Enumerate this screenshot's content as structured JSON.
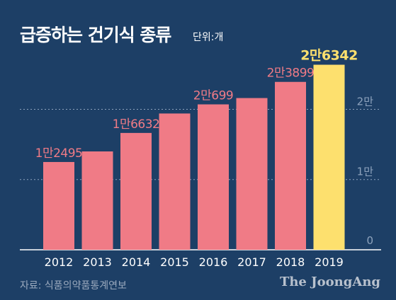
{
  "colors": {
    "background": "#1d3f66",
    "bar": "#f07b86",
    "highlight_bar": "#fde06e",
    "label": "#f07b86",
    "highlight_label": "#fde06e",
    "grid": "#8ea3bd",
    "axis_text": "#ffffff",
    "ytick_text": "#8ea3bd"
  },
  "source": "자료: 식품의약품통계연보",
  "logo": "The JoongAng",
  "chart_data": {
    "type": "bar",
    "title": "급증하는 건기식 종류",
    "unit": "단위:개",
    "categories": [
      "2012",
      "2013",
      "2014",
      "2015",
      "2016",
      "2017",
      "2018",
      "2019"
    ],
    "values": [
      12495,
      14000,
      16632,
      19400,
      20699,
      21600,
      23899,
      26342
    ],
    "data_labels": [
      "1만2495",
      "",
      "1만6632",
      "",
      "2만699",
      "",
      "2만3899",
      "2만6342"
    ],
    "highlight_index": 7,
    "ylim": [
      0,
      27500
    ],
    "yticks": [
      {
        "value": 0,
        "label": "0"
      },
      {
        "value": 10000,
        "label": "1만"
      },
      {
        "value": 20000,
        "label": "2만"
      }
    ],
    "grid": true
  }
}
